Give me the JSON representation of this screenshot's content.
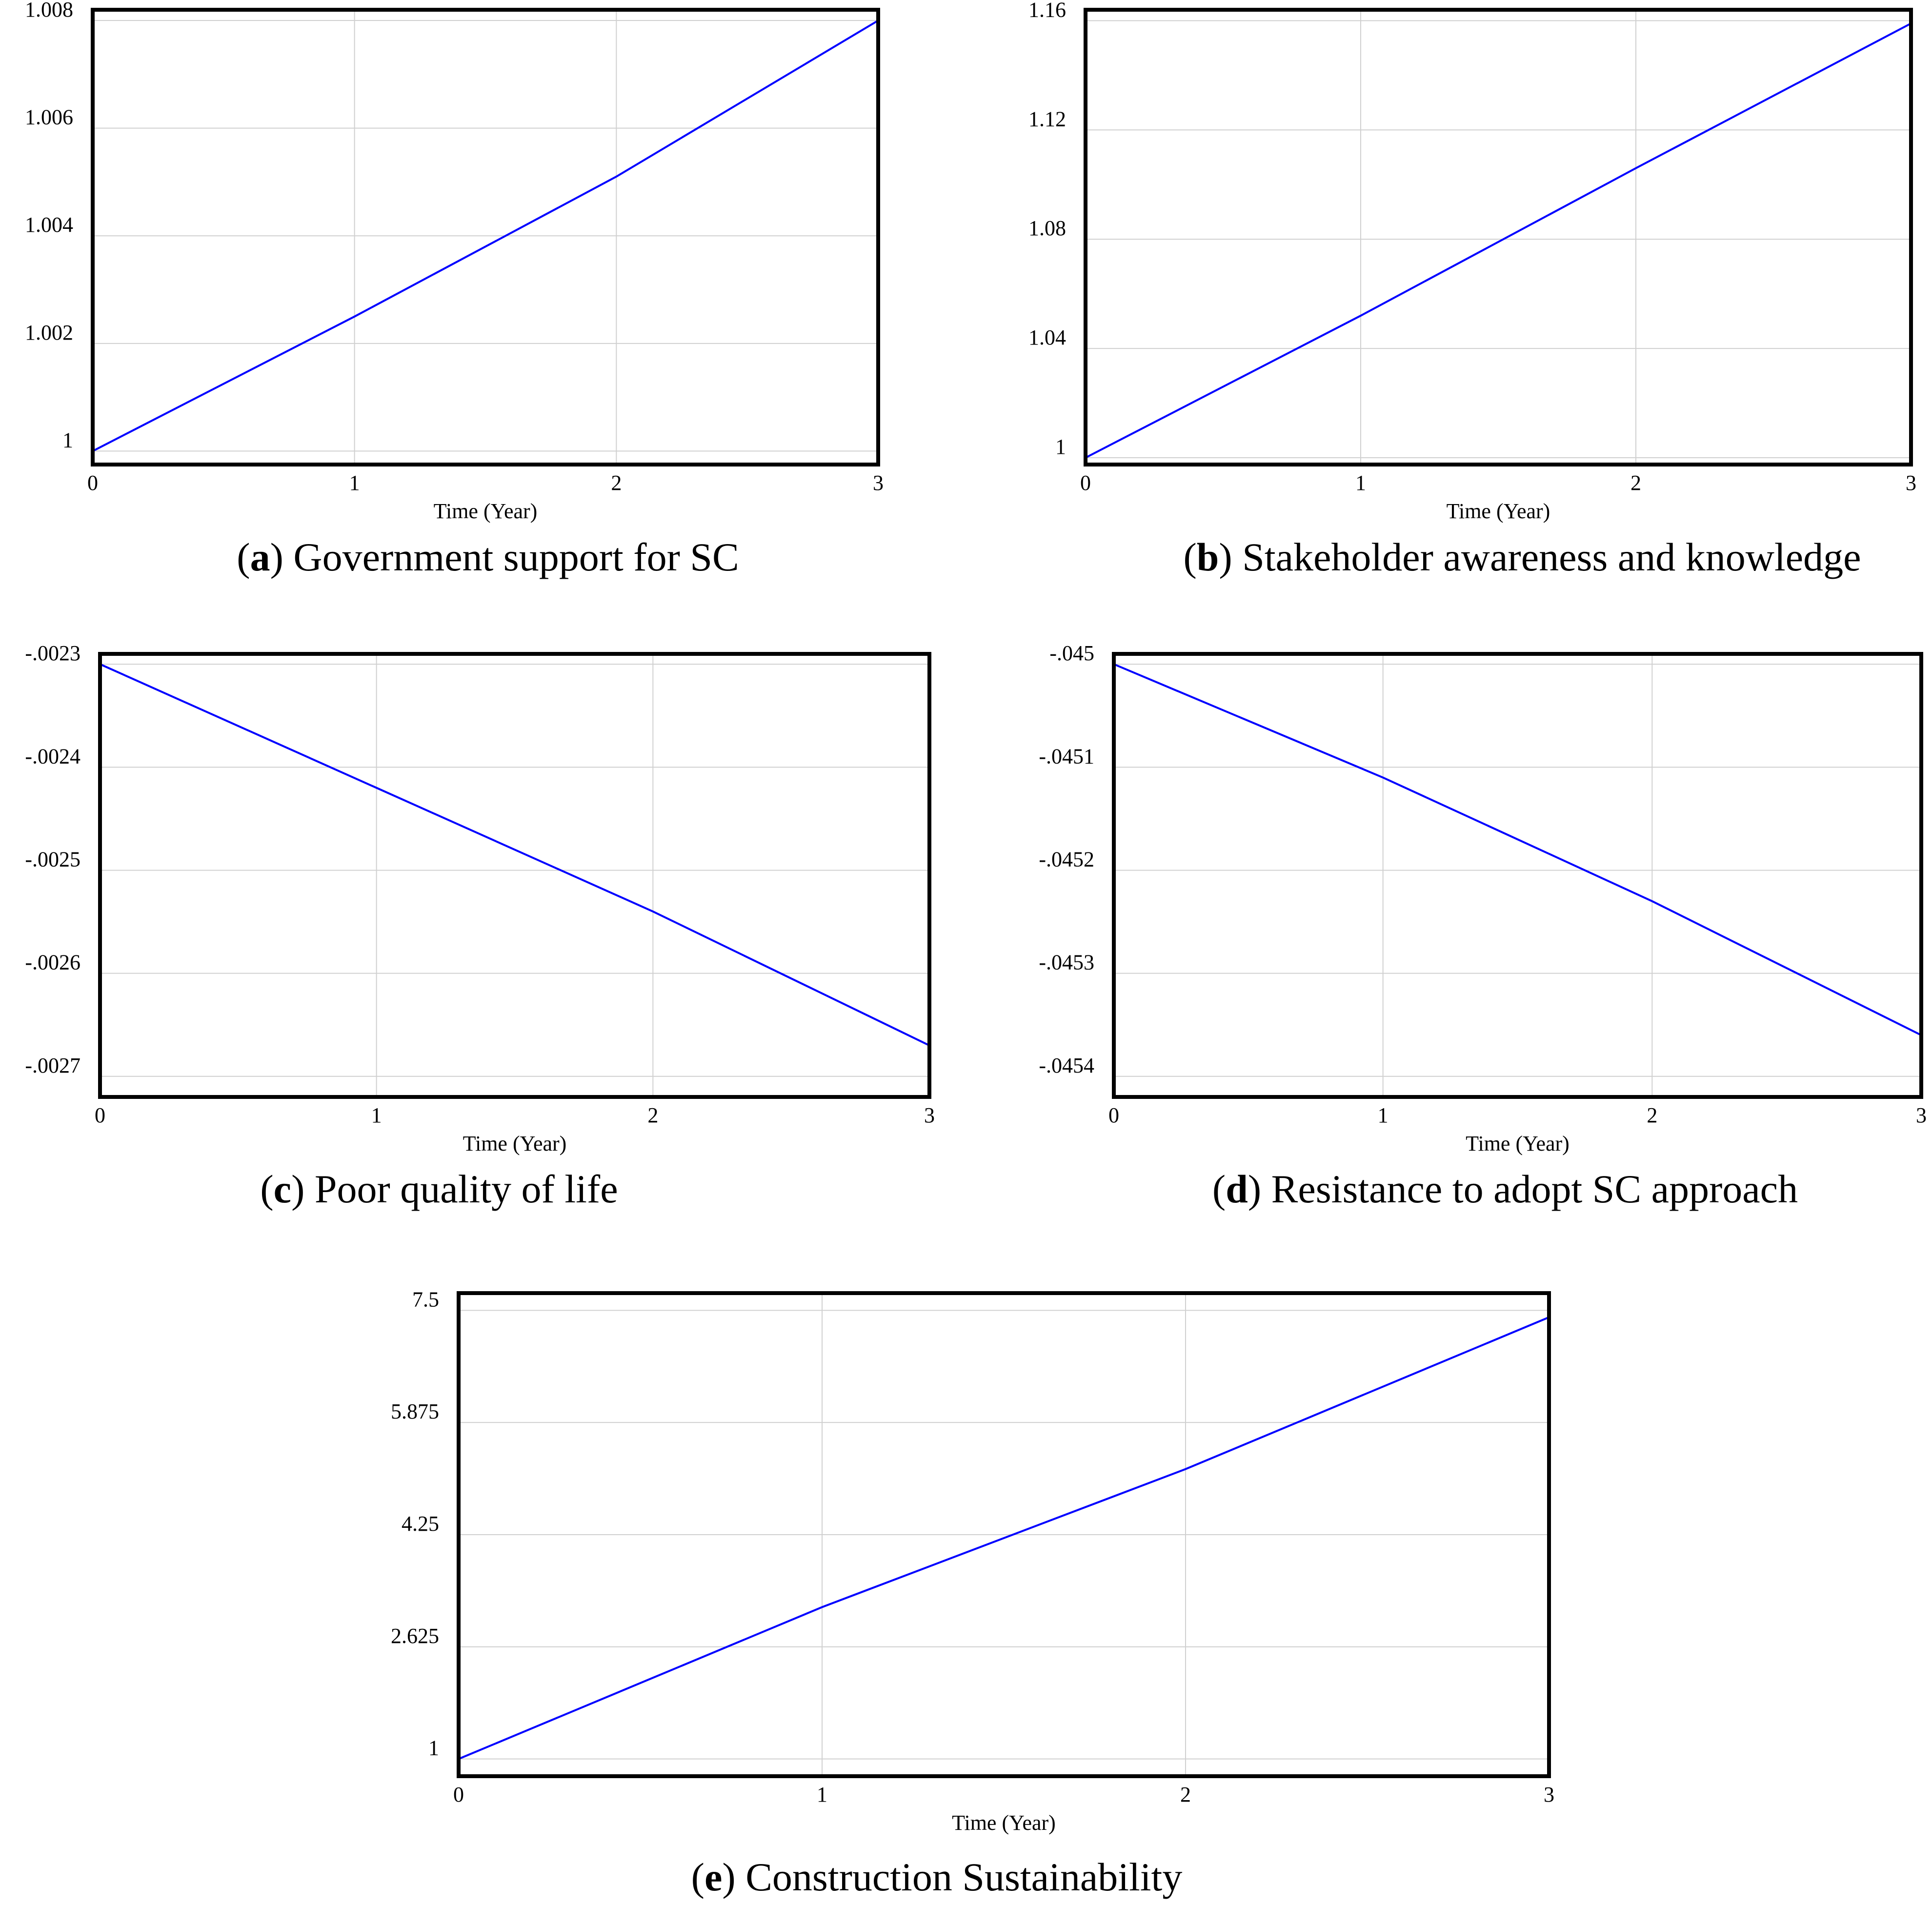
{
  "chart_data": [
    {
      "type": "line",
      "caption_letter": "a",
      "caption_title": "Government support for SC",
      "xlabel": "Time (Year)",
      "ylabel": "",
      "xlim": [
        0,
        3
      ],
      "ylim": [
        0.99975,
        1.0082
      ],
      "x_ticks": [
        "0",
        "1",
        "2",
        "3"
      ],
      "y_ticks": [
        {
          "value": 1.0,
          "label": "1"
        },
        {
          "value": 1.002,
          "label": "1.002"
        },
        {
          "value": 1.004,
          "label": "1.004"
        },
        {
          "value": 1.006,
          "label": "1.006"
        },
        {
          "value": 1.008,
          "label": "1.008"
        }
      ],
      "grid": true,
      "series": [
        {
          "name": "Government support for SC",
          "color": "#0000ff",
          "x": [
            0,
            1,
            2,
            3
          ],
          "y": [
            1.0,
            1.0025,
            1.0051,
            1.008
          ]
        }
      ]
    },
    {
      "type": "line",
      "caption_letter": "b",
      "caption_title": "Stakeholder awareness and knowledge",
      "xlabel": "Time (Year)",
      "ylabel": "",
      "xlim": [
        0,
        3
      ],
      "ylim": [
        0.9975,
        1.164
      ],
      "x_ticks": [
        "0",
        "1",
        "2",
        "3"
      ],
      "y_ticks": [
        {
          "value": 1.0,
          "label": "1"
        },
        {
          "value": 1.04,
          "label": "1.04"
        },
        {
          "value": 1.08,
          "label": "1.08"
        },
        {
          "value": 1.12,
          "label": "1.12"
        },
        {
          "value": 1.16,
          "label": "1.16"
        }
      ],
      "grid": true,
      "series": [
        {
          "name": "Stakeholder awareness and knowledge",
          "color": "#0000ff",
          "x": [
            0,
            1,
            2,
            3
          ],
          "y": [
            1.0,
            1.052,
            1.106,
            1.159
          ]
        }
      ]
    },
    {
      "type": "line",
      "caption_letter": "c",
      "caption_title": "Poor quality of life",
      "xlabel": "Time (Year)",
      "ylabel": "",
      "xlim": [
        0,
        3
      ],
      "ylim": [
        -0.00272,
        -0.00229
      ],
      "x_ticks": [
        "0",
        "1",
        "2",
        "3"
      ],
      "y_ticks": [
        {
          "value": -0.0023,
          "label": "-.0023"
        },
        {
          "value": -0.0024,
          "label": "-.0024"
        },
        {
          "value": -0.0025,
          "label": "-.0025"
        },
        {
          "value": -0.0026,
          "label": "-.0026"
        },
        {
          "value": -0.0027,
          "label": "-.0027"
        }
      ],
      "grid": true,
      "series": [
        {
          "name": "Poor quality of life",
          "color": "#0000ff",
          "x": [
            0,
            1,
            2,
            3
          ],
          "y": [
            -0.0023,
            -0.00242,
            -0.00254,
            -0.00267
          ]
        }
      ]
    },
    {
      "type": "line",
      "caption_letter": "d",
      "caption_title": "Resistance to adopt SC approach",
      "xlabel": "Time (Year)",
      "ylabel": "",
      "xlim": [
        0,
        3
      ],
      "ylim": [
        -0.04542,
        -0.04499
      ],
      "x_ticks": [
        "0",
        "1",
        "2",
        "3"
      ],
      "y_ticks": [
        {
          "value": -0.045,
          "label": "-.045"
        },
        {
          "value": -0.0451,
          "label": "-.0451"
        },
        {
          "value": -0.0452,
          "label": "-.0452"
        },
        {
          "value": -0.0453,
          "label": "-.0453"
        },
        {
          "value": -0.0454,
          "label": "-.0454"
        }
      ],
      "grid": true,
      "series": [
        {
          "name": "Resistance to adopt SC approach",
          "color": "#0000ff",
          "x": [
            0,
            1,
            2,
            3
          ],
          "y": [
            -0.045,
            -0.04511,
            -0.04523,
            -0.04536
          ]
        }
      ]
    },
    {
      "type": "line",
      "caption_letter": "e",
      "caption_title": "Construction Sustainability",
      "xlabel": "Time (Year)",
      "ylabel": "",
      "xlim": [
        0,
        3
      ],
      "ylim": [
        0.75,
        7.75
      ],
      "x_ticks": [
        "0",
        "1",
        "2",
        "3"
      ],
      "y_ticks": [
        {
          "value": 1.0,
          "label": "1"
        },
        {
          "value": 2.625,
          "label": "2.625"
        },
        {
          "value": 4.25,
          "label": "4.25"
        },
        {
          "value": 5.875,
          "label": "5.875"
        },
        {
          "value": 7.5,
          "label": "7.5"
        }
      ],
      "grid": true,
      "series": [
        {
          "name": "Construction Sustainability",
          "color": "#0000ff",
          "x": [
            0,
            1,
            2,
            3
          ],
          "y": [
            1.0,
            3.2,
            5.2,
            7.4
          ]
        }
      ]
    }
  ]
}
